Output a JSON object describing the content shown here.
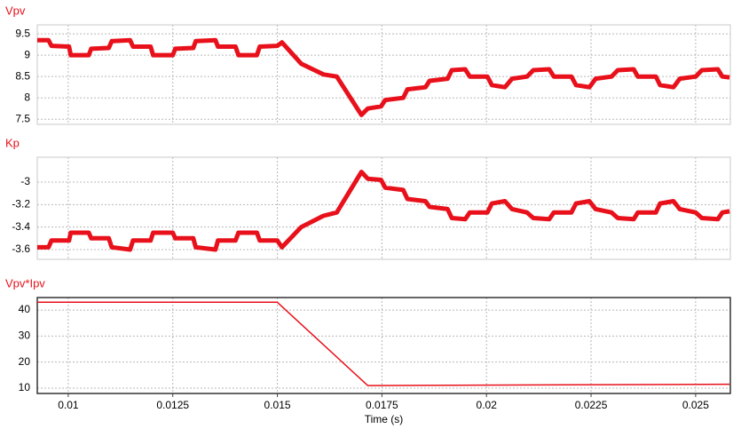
{
  "chart_data": [
    {
      "type": "line",
      "title": "Vpv",
      "color": "#e8101a",
      "x": [
        0.00926,
        0.00953,
        0.0096,
        0.01002,
        0.01006,
        0.01049,
        0.01055,
        0.01097,
        0.01104,
        0.01148,
        0.01155,
        0.01197,
        0.01203,
        0.0125,
        0.01256,
        0.01299,
        0.01305,
        0.01352,
        0.01358,
        0.014,
        0.01407,
        0.01451,
        0.01458,
        0.015,
        0.01511,
        0.01557,
        0.0161,
        0.01642,
        0.01701,
        0.01716,
        0.01748,
        0.01758,
        0.01801,
        0.01811,
        0.01854,
        0.01864,
        0.01907,
        0.01917,
        0.01949,
        0.0196,
        0.02002,
        0.02013,
        0.02044,
        0.02061,
        0.02097,
        0.02112,
        0.0215,
        0.02161,
        0.02203,
        0.02214,
        0.02246,
        0.02261,
        0.02299,
        0.02314,
        0.02352,
        0.02362,
        0.02405,
        0.02415,
        0.02447,
        0.02462,
        0.025,
        0.02515,
        0.02553,
        0.02564,
        0.02581
      ],
      "values": [
        9.35,
        9.35,
        9.22,
        9.2,
        9.0,
        9.0,
        9.15,
        9.17,
        9.33,
        9.35,
        9.2,
        9.2,
        9.0,
        9.0,
        9.15,
        9.17,
        9.33,
        9.35,
        9.2,
        9.2,
        9.0,
        9.0,
        9.2,
        9.22,
        9.3,
        8.8,
        8.55,
        8.5,
        7.6,
        7.75,
        7.8,
        7.95,
        8.0,
        8.2,
        8.25,
        8.4,
        8.45,
        8.65,
        8.67,
        8.5,
        8.5,
        8.3,
        8.25,
        8.45,
        8.5,
        8.65,
        8.67,
        8.5,
        8.5,
        8.3,
        8.25,
        8.45,
        8.5,
        8.65,
        8.67,
        8.5,
        8.5,
        8.3,
        8.25,
        8.45,
        8.5,
        8.65,
        8.67,
        8.5,
        8.48
      ],
      "xlim": [
        0.00926,
        0.02583
      ],
      "ylim": [
        7.38,
        9.71
      ],
      "xticks": [
        0.01,
        0.0125,
        0.015,
        0.0175,
        0.02,
        0.0225,
        0.025
      ],
      "yticks": [
        7.5,
        8,
        8.5,
        9,
        9.5
      ],
      "grid": true
    },
    {
      "type": "line",
      "title": "Kp",
      "color": "#e8101a",
      "x": [
        0.00926,
        0.00953,
        0.0096,
        0.01002,
        0.01006,
        0.01049,
        0.01055,
        0.01097,
        0.01104,
        0.01148,
        0.01155,
        0.01197,
        0.01203,
        0.0125,
        0.01256,
        0.01299,
        0.01305,
        0.01352,
        0.01358,
        0.014,
        0.01407,
        0.01451,
        0.01458,
        0.015,
        0.01511,
        0.01557,
        0.0161,
        0.01642,
        0.01701,
        0.01716,
        0.01748,
        0.01758,
        0.01801,
        0.01811,
        0.01854,
        0.01864,
        0.01907,
        0.01917,
        0.01949,
        0.0196,
        0.02002,
        0.02013,
        0.02044,
        0.02061,
        0.02097,
        0.02112,
        0.0215,
        0.02161,
        0.02203,
        0.02214,
        0.02246,
        0.02261,
        0.02299,
        0.02314,
        0.02352,
        0.02362,
        0.02405,
        0.02415,
        0.02447,
        0.02462,
        0.025,
        0.02515,
        0.02553,
        0.02564,
        0.02581
      ],
      "values": [
        -3.58,
        -3.58,
        -3.52,
        -3.52,
        -3.45,
        -3.45,
        -3.5,
        -3.5,
        -3.58,
        -3.6,
        -3.52,
        -3.52,
        -3.45,
        -3.45,
        -3.5,
        -3.5,
        -3.58,
        -3.6,
        -3.52,
        -3.52,
        -3.45,
        -3.45,
        -3.52,
        -3.52,
        -3.58,
        -3.4,
        -3.3,
        -3.27,
        -2.91,
        -2.97,
        -2.98,
        -3.05,
        -3.07,
        -3.15,
        -3.17,
        -3.22,
        -3.24,
        -3.32,
        -3.33,
        -3.27,
        -3.27,
        -3.19,
        -3.17,
        -3.24,
        -3.27,
        -3.32,
        -3.33,
        -3.27,
        -3.27,
        -3.19,
        -3.17,
        -3.24,
        -3.27,
        -3.32,
        -3.33,
        -3.27,
        -3.27,
        -3.19,
        -3.17,
        -3.24,
        -3.27,
        -3.32,
        -3.33,
        -3.27,
        -3.26
      ],
      "xlim": [
        0.00926,
        0.02583
      ],
      "ylim": [
        -3.687,
        -2.779
      ],
      "xticks": [
        0.01,
        0.0125,
        0.015,
        0.0175,
        0.02,
        0.0225,
        0.025
      ],
      "yticks": [
        -3.6,
        -3.4,
        -3.2,
        -3
      ],
      "grid": true
    },
    {
      "type": "line",
      "title": "Vpv*Ipv",
      "color": "#e8101a",
      "xlabel": "Time (s)",
      "x": [
        0.00926,
        0.015,
        0.01716,
        0.02581
      ],
      "values": [
        43,
        43,
        11,
        11.5
      ],
      "xlim": [
        0.00926,
        0.02583
      ],
      "ylim": [
        7.95,
        44.8
      ],
      "xticks": [
        0.01,
        0.0125,
        0.015,
        0.0175,
        0.02,
        0.0225,
        0.025
      ],
      "yticks": [
        10,
        20,
        30,
        40
      ],
      "grid": true
    }
  ]
}
